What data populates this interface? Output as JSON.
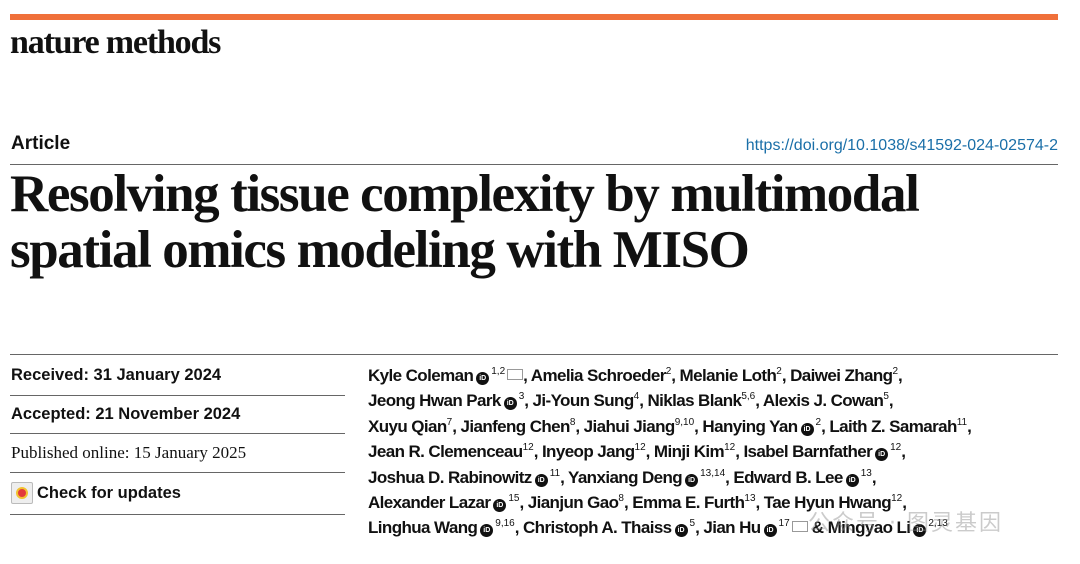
{
  "journal": "nature methods",
  "accent_color": "#f0703a",
  "article_type": "Article",
  "doi": "https://doi.org/10.1038/s41592-024-02574-2",
  "title_lines": [
    "Resolving tissue complexity by multimodal",
    "spatial omics modeling with MISO"
  ],
  "dates": {
    "received": "Received: 31 January 2024",
    "accepted": "Accepted: 21 November 2024",
    "published": "Published online: 15 January 2025"
  },
  "check_updates": "Check for updates",
  "author_lines": [
    [
      {
        "name": "Kyle Coleman",
        "orcid": true,
        "sup": "1,2",
        "mail": true
      },
      {
        "name": "Amelia Schroeder",
        "sup": "2"
      },
      {
        "name": "Melanie Loth",
        "sup": "2"
      },
      {
        "name": "Daiwei Zhang",
        "sup": "2"
      }
    ],
    [
      {
        "name": "Jeong Hwan Park",
        "orcid": true,
        "sup": "3"
      },
      {
        "name": "Ji-Youn Sung",
        "sup": "4"
      },
      {
        "name": "Niklas Blank",
        "sup": "5,6"
      },
      {
        "name": "Alexis J. Cowan",
        "sup": "5"
      }
    ],
    [
      {
        "name": "Xuyu Qian",
        "sup": "7"
      },
      {
        "name": "Jianfeng Chen",
        "sup": "8"
      },
      {
        "name": "Jiahui Jiang",
        "sup": "9,10"
      },
      {
        "name": "Hanying Yan",
        "orcid": true,
        "sup": "2"
      },
      {
        "name": "Laith Z. Samarah",
        "sup": "11"
      }
    ],
    [
      {
        "name": "Jean R. Clemenceau",
        "sup": "12"
      },
      {
        "name": "Inyeop Jang",
        "sup": "12"
      },
      {
        "name": "Minji Kim",
        "sup": "12"
      },
      {
        "name": "Isabel Barnfather",
        "orcid": true,
        "sup": "12"
      }
    ],
    [
      {
        "name": "Joshua D. Rabinowitz",
        "orcid": true,
        "sup": "11"
      },
      {
        "name": "Yanxiang Deng",
        "orcid": true,
        "sup": "13,14"
      },
      {
        "name": "Edward B. Lee",
        "orcid": true,
        "sup": "13"
      }
    ],
    [
      {
        "name": "Alexander Lazar",
        "orcid": true,
        "sup": "15"
      },
      {
        "name": "Jianjun Gao",
        "sup": "8"
      },
      {
        "name": "Emma E. Furth",
        "sup": "13"
      },
      {
        "name": "Tae Hyun Hwang",
        "sup": "12"
      }
    ],
    [
      {
        "name": "Linghua Wang",
        "orcid": true,
        "sup": "9,16"
      },
      {
        "name": "Christoph A. Thaiss",
        "orcid": true,
        "sup": "5"
      },
      {
        "name": "Jian Hu",
        "orcid": true,
        "sup": "17",
        "mail": true
      },
      {
        "name": "Mingyao Li",
        "orcid": true,
        "sup": "2,13",
        "amp": true,
        "last": true
      }
    ]
  ],
  "watermark": "公众号 · 图灵基因"
}
